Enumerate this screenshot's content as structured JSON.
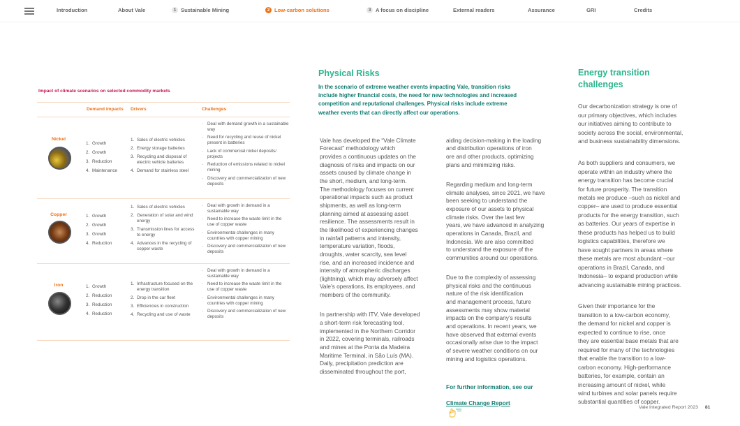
{
  "nav": {
    "menu_icon": "hamburger-icon",
    "items": [
      {
        "label": "Introduction"
      },
      {
        "label": "About Vale"
      },
      {
        "num": "1",
        "label": "Sustainable Mining"
      },
      {
        "num": "2",
        "label": "Low-carbon solutions",
        "active": true
      },
      {
        "num": "3",
        "label": "A focus on discipline"
      },
      {
        "label": "External readers"
      },
      {
        "label": "Assurance"
      },
      {
        "label": "GRI"
      },
      {
        "label": "Credits"
      }
    ],
    "active_color": "#ee7218"
  },
  "table": {
    "title": "Impact of climate scenarios on selected commodity markets",
    "headers": [
      "Demand impacts",
      "Drivers",
      "Challenges"
    ],
    "rows": [
      {
        "name": "Nickel",
        "demand": [
          "1. Growth",
          "2. Growth",
          "3. Reduction",
          "4. Maintenance"
        ],
        "drivers": [
          "1. Sales of electric vehicles",
          "2. Energy storage batteries",
          "3. Recycling and disposal of electric vehicle batteries",
          "4. Demand for stainless steel"
        ],
        "challenges": [
          "Deal with demand growth in a sustainable way",
          "Need for recycling and reuse of nickel present in batteries",
          "Lack of commercial nickel deposits/ projects",
          "Reduction of emissions related to nickel mining",
          "Discovery and commercialization of new deposits"
        ]
      },
      {
        "name": "Copper",
        "demand": [
          "1. Growth",
          "2. Growth",
          "3. Growth",
          "4. Reduction"
        ],
        "drivers": [
          "1. Sales of electric vehicles",
          "2. Generation of solar and wind energy",
          "3. Transmission lines for access to energy",
          "4. Advances in the recycling of copper waste"
        ],
        "challenges": [
          "Deal with growth in demand in a sustainable way",
          "Need to increase the waste limit in the use of copper waste",
          "Environmental challenges in many countries with copper mining",
          "Discovery and commercialization of new deposits"
        ]
      },
      {
        "name": "Iron",
        "demand": [
          "1. Growth",
          "2. Reduction",
          "3. Reduction",
          "4. Reduction"
        ],
        "drivers": [
          "1. Infrastructure focused on the energy transition",
          "2.  Drop in the car fleet",
          "3. Efficiencies in construction",
          "4. Recycling and use of waste"
        ],
        "challenges": [
          "Deal with growth in demand in a sustainable way",
          "Need to increase the waste limit in the use of copper waste",
          "Environmental challenges in many countries with copper mining",
          "Discovery and commercialization of new deposits"
        ]
      }
    ]
  },
  "physical": {
    "title": "Physical Risks",
    "lead": "In the scenario of extreme weather events impacting Vale, transition risks\ninclude higher financial costs, the need for new technologies and increased\ncompetition and reputational challenges. Physical risks include extreme\nweather events that can directly affect our operations.",
    "col1": [
      "Vale has developed the “Vale Climate\nForecast” methodology which\nprovides a continuous updates on the\ndiagnosis of risks and impacts on our\nassets caused by climate change in\nthe short, medium, and long-term.\nThe methodology focuses on current\noperational impacts such as product\nshipments, as well as long-term\nplanning aimed at assessing asset\nresilience. The assessments result in\nthe likelihood of experiencing changes\nin rainfall patterns and intensity,\ntemperature variation, floods,\ndroughts, water scarcity, sea level\nrise, and an increased incidence and\nintensity of atmospheric discharges\n(lightning), which may adversely affect\nVale’s operations, its employees, and\nmembers of the community.",
      "In partnership with ITV, Vale developed\na short-term risk forecasting tool,\nimplemented in the Northern Corridor\nin 2022, covering terminals, railroads\nand mines at the Ponta da Madeira\nMaritime Terminal, in São Luís (MA).\nDaily, precipitation prediction are\ndisseminated throughout the port,"
    ],
    "col2": [
      "aiding decision-making in the loading\nand distribution operations of iron\nore and other products, optimizing\nplans and minimizing risks.",
      "Regarding medium and long-term\nclimate analyses, since 2021, we have\nbeen seeking to understand the\nexposure of our assets to physical\nclimate risks. Over the last few\nyears, we have advanced in analyzing\noperations in Canada, Brazil, and\nIndonesia. We are also committed\nto understand the exposure of the\ncommunities around our operations.",
      "Due to the complexity of assessing\nphysical risks and the continuous\nnature of the risk identification\nand management process, future\nassessments may show material\nimpacts on the company’s results\nand operations. In recent years, we\nhave observed that external events\noccasionally arise due to the impact\nof severe weather conditions on our\nmining and logistics operations."
    ],
    "more_info": "For further information, see our",
    "link_label": "Climate Change Report",
    "link_icon": "hand-pointer-icon"
  },
  "energy": {
    "title": "Energy transition\nchallenges",
    "paragraphs": [
      "Our decarbonization strategy is one of\nour primary objectives, which includes\nour initiatives aiming to contribute to\nsociety across the social, environmental,\nand business sustainability dimensions.",
      "As both suppliers and consumers, we\noperate within an industry where the\nenergy transition has become crucial\nfor future prosperity. The transition\nmetals we produce –such as nickel and\ncopper– are used to produce essential\nproducts for the energy transition, such\nas batteries. Our years of expertise in\nthese products has helped us to build\nlogistics capabilities, therefore we\nhave sought partners in areas where\nthese metals are most abundant –our\noperations in Brazil, Canada, and\nIndonesia– to expand production while\nadvancing sustainable mining practices.",
      "Given their importance for the\ntransition to a low-carbon economy,\nthe demand for nickel and copper is\nexpected to continue to rise, once\nthey are essential base metals that are\nrequired for many of the technologies\nthat enable the transition to a low-\ncarbon economy. High-performance\nbatteries, for example, contain an\nincreasing amount of nickel, while\nwind turbines and solar panels require\nsubstantial quantities of copper."
    ]
  },
  "footer": {
    "report": "Vale Integrated Report 2023",
    "page": "81"
  }
}
